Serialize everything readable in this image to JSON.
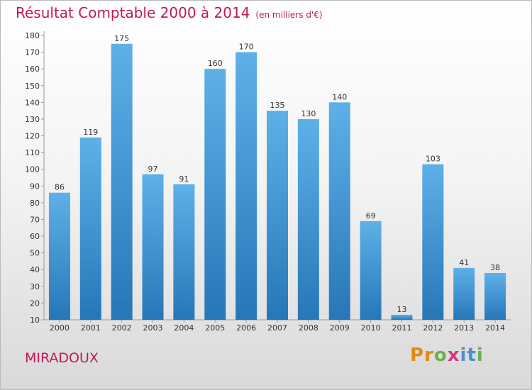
{
  "header": {
    "title": "Résultat Comptable 2000 à 2014",
    "subtitle": "(en milliers d'€)"
  },
  "footer": {
    "commune": "MIRADOUX",
    "brand": "Proxiti"
  },
  "colors": {
    "bar_top": "#5eb0e8",
    "bar_bottom": "#2777b8",
    "title": "#c0185a"
  },
  "chart_data": {
    "type": "bar",
    "title": "Résultat Comptable 2000 à 2014",
    "subtitle": "(en milliers d'€)",
    "categories": [
      "2000",
      "2001",
      "2002",
      "2003",
      "2004",
      "2005",
      "2006",
      "2007",
      "2008",
      "2009",
      "2010",
      "2011",
      "2012",
      "2013",
      "2014"
    ],
    "values": [
      86,
      119,
      175,
      97,
      91,
      160,
      170,
      135,
      130,
      140,
      69,
      13,
      103,
      41,
      38
    ],
    "ylim": [
      10,
      180
    ],
    "ytick_step": 10,
    "xlabel": "",
    "ylabel": "",
    "grid": false,
    "data_labels": true
  }
}
